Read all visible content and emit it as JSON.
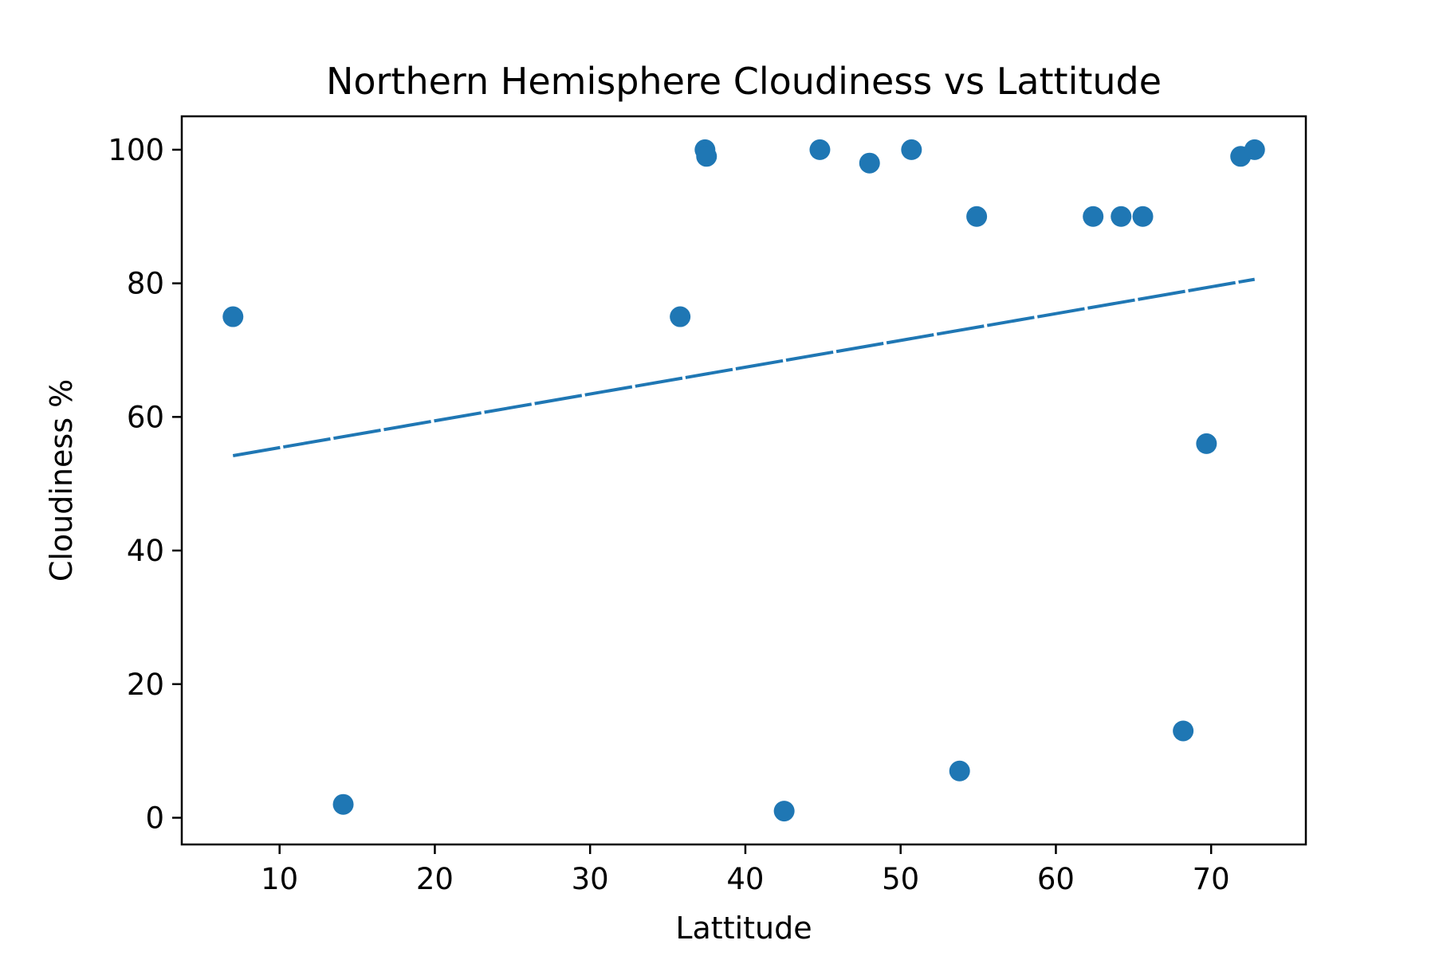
{
  "chart_data": {
    "type": "scatter",
    "title": "Northern Hemisphere Cloudiness vs Lattitude",
    "xlabel": "Lattitude",
    "ylabel": "Cloudiness %",
    "xlim": [
      3.7,
      76.1
    ],
    "ylim": [
      -4,
      105
    ],
    "xticks": [
      10,
      20,
      30,
      40,
      50,
      60,
      70
    ],
    "yticks": [
      0,
      20,
      40,
      60,
      80,
      100
    ],
    "grid": false,
    "colors": {
      "marker": "#1f77b4",
      "line": "#1f77b4",
      "axes": "#000000"
    },
    "series": [
      {
        "type": "scatter",
        "x": [
          7.0,
          14.1,
          35.8,
          37.4,
          37.5,
          42.5,
          44.8,
          48.0,
          50.7,
          53.8,
          54.9,
          62.4,
          64.2,
          65.6,
          68.2,
          69.7,
          71.9,
          72.8
        ],
        "y": [
          75,
          2,
          75,
          100,
          99,
          1,
          100,
          98,
          100,
          7,
          90,
          90,
          90,
          90,
          13,
          56,
          99,
          100
        ]
      },
      {
        "type": "line",
        "style": "dashed",
        "x": [
          7.0,
          72.8
        ],
        "y": [
          54.2,
          80.6
        ]
      }
    ]
  }
}
